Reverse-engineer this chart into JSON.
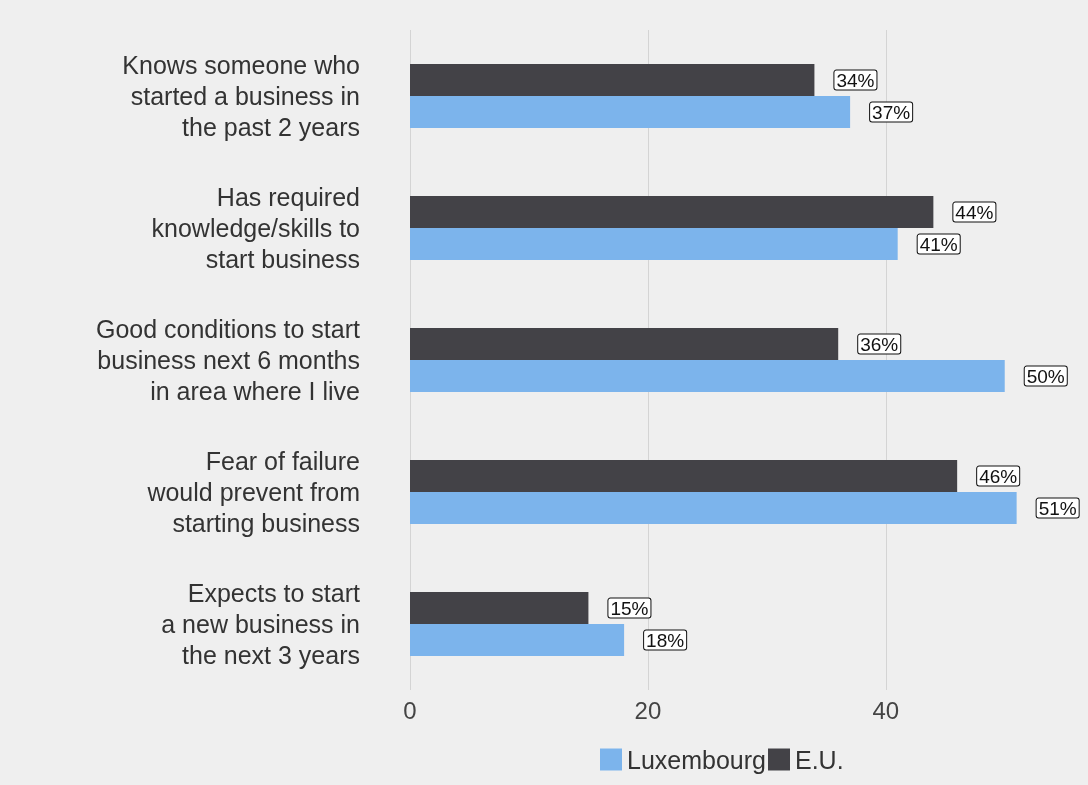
{
  "chart_data": {
    "type": "bar",
    "orientation": "horizontal",
    "categories": [
      "Knows someone who\nstarted a business in\nthe past 2 years",
      "Has required\nknowledge/skills to\nstart business",
      "Good conditions to start\nbusiness next 6 months\nin area where I live",
      "Fear of failure\nwould prevent from\nstarting business",
      "Expects to start\na new business in\nthe next 3 years"
    ],
    "series": [
      {
        "name": "E.U.",
        "color": "#434247",
        "values": [
          34,
          44,
          36,
          46,
          15
        ],
        "value_labels": [
          "34%",
          "44%",
          "36%",
          "46%",
          "15%"
        ]
      },
      {
        "name": "Luxembourg",
        "color": "#7cb4ec",
        "values": [
          37,
          41,
          50,
          51,
          18
        ],
        "value_labels": [
          "37%",
          "41%",
          "50%",
          "51%",
          "18%"
        ]
      }
    ],
    "xlim": [
      0,
      57
    ],
    "xticks": [
      0,
      20,
      40
    ],
    "grid": "x",
    "legend": "bottom"
  }
}
